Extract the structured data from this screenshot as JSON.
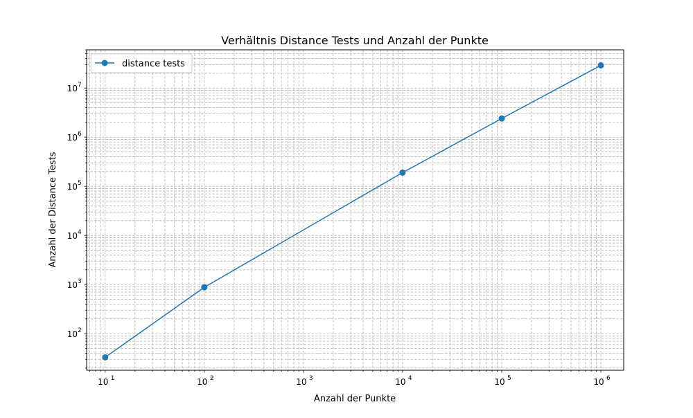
{
  "chart_data": {
    "type": "line",
    "title": "Verhältnis Distance Tests und Anzahl der Punkte",
    "xlabel": "Anzahl der Punkte",
    "ylabel": "Anzahl der Distance Tests",
    "x_scale": "log",
    "y_scale": "log",
    "xlim": [
      6.5,
      1700000
    ],
    "ylim": [
      18,
      60000000
    ],
    "x_ticks": [
      {
        "value": 10,
        "base": "10",
        "exp": "1"
      },
      {
        "value": 100,
        "base": "10",
        "exp": "2"
      },
      {
        "value": 1000,
        "base": "10",
        "exp": "3"
      },
      {
        "value": 10000,
        "base": "10",
        "exp": "4"
      },
      {
        "value": 100000,
        "base": "10",
        "exp": "5"
      },
      {
        "value": 1000000,
        "base": "10",
        "exp": "6"
      }
    ],
    "y_ticks": [
      {
        "value": 100,
        "base": "10",
        "exp": "2"
      },
      {
        "value": 1000,
        "base": "10",
        "exp": "3"
      },
      {
        "value": 10000,
        "base": "10",
        "exp": "4"
      },
      {
        "value": 100000,
        "base": "10",
        "exp": "5"
      },
      {
        "value": 1000000,
        "base": "10",
        "exp": "6"
      },
      {
        "value": 10000000,
        "base": "10",
        "exp": "7"
      }
    ],
    "grid": true,
    "grid_style": "dashed major and minor",
    "legend_position": "top-left",
    "series": [
      {
        "name": "distance tests",
        "color": "#1f77b4",
        "marker": "circle",
        "x": [
          10,
          100,
          10000,
          100000,
          1000000
        ],
        "y": [
          33,
          880,
          190000,
          2400000,
          29000000
        ]
      }
    ]
  }
}
